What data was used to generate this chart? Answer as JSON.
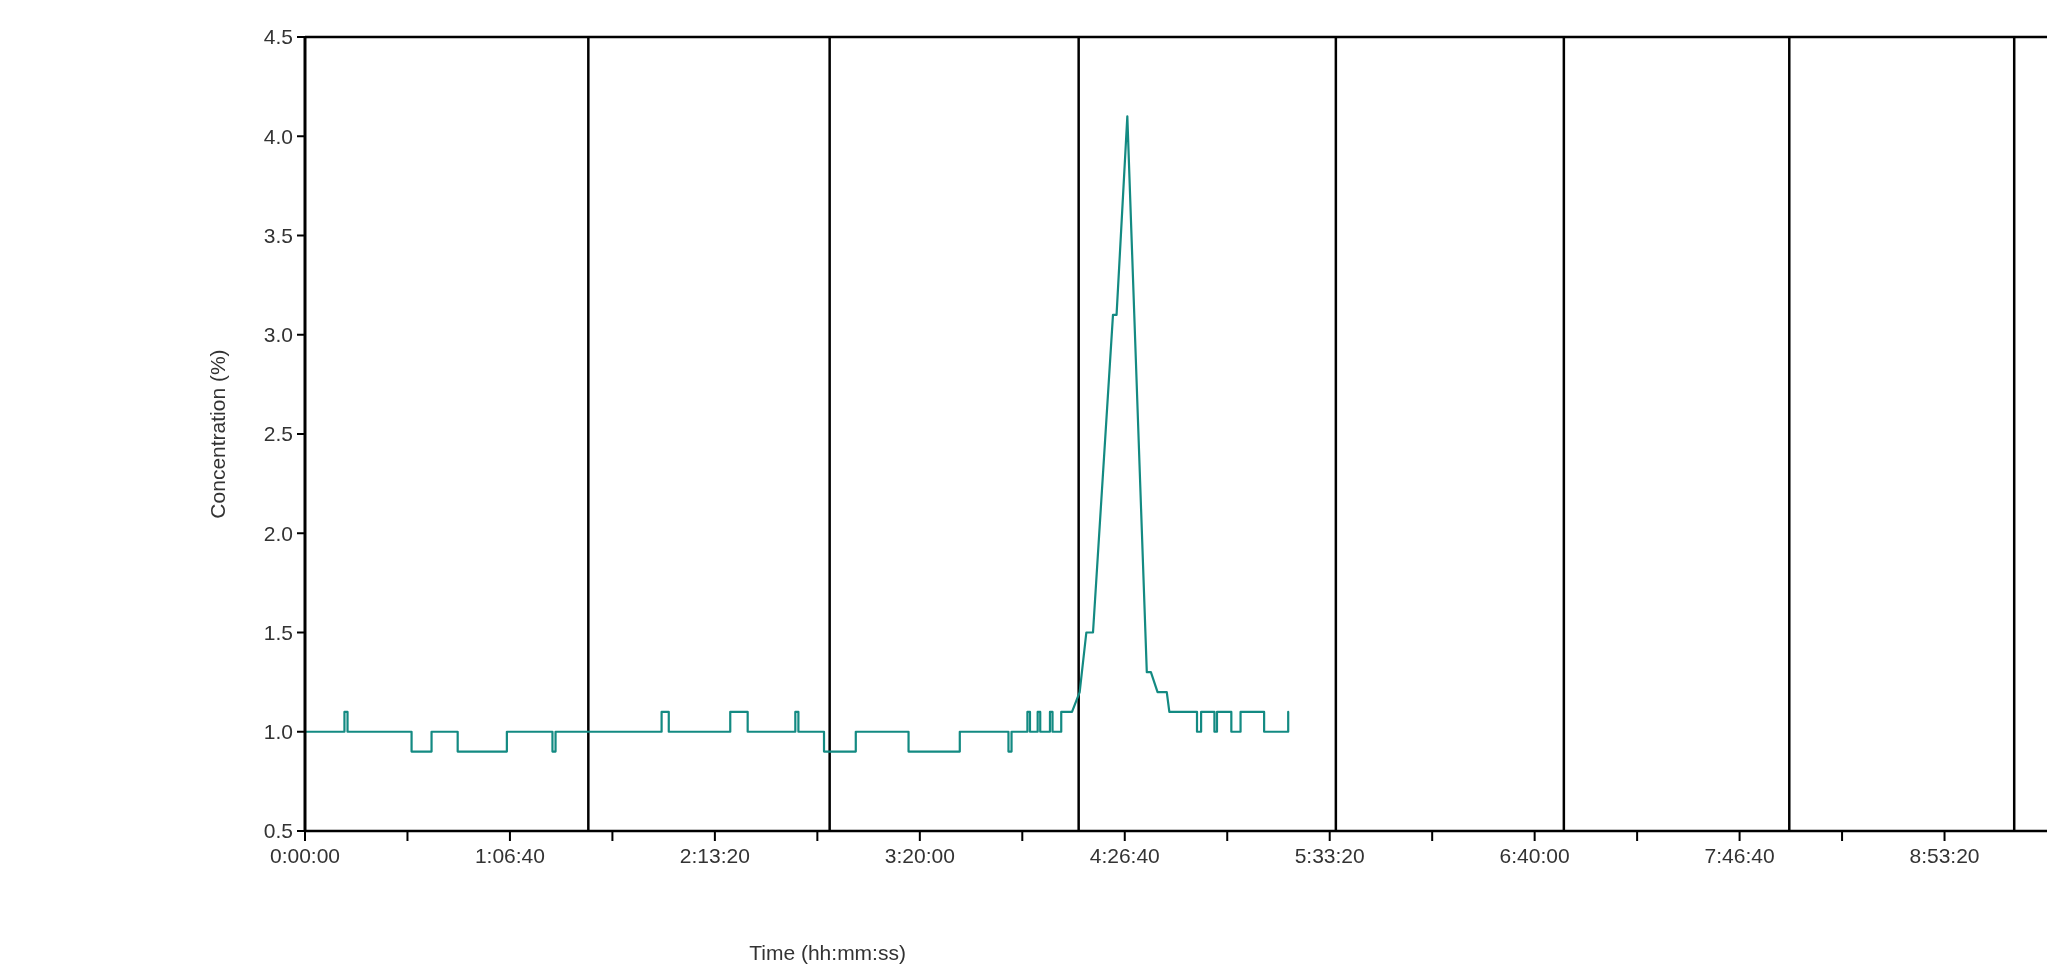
{
  "chart_data": {
    "type": "line",
    "xlabel": "Time (hh:mm:ss)",
    "ylabel": "Concentration (%)",
    "xlim": [
      0,
      34000
    ],
    "ylim": [
      0.5,
      4.5
    ],
    "xticks": [
      {
        "value": 0,
        "label": "0:00:00"
      },
      {
        "value": 2000,
        "label": null
      },
      {
        "value": 4000,
        "label": "1:06:40"
      },
      {
        "value": 6000,
        "label": null
      },
      {
        "value": 8000,
        "label": "2:13:20"
      },
      {
        "value": 10000,
        "label": null
      },
      {
        "value": 12000,
        "label": "3:20:00"
      },
      {
        "value": 14000,
        "label": null
      },
      {
        "value": 16000,
        "label": "4:26:40"
      },
      {
        "value": 18000,
        "label": null
      },
      {
        "value": 20000,
        "label": "5:33:20"
      },
      {
        "value": 22000,
        "label": null
      },
      {
        "value": 24000,
        "label": "6:40:00"
      },
      {
        "value": 26000,
        "label": null
      },
      {
        "value": 28000,
        "label": "7:46:40"
      },
      {
        "value": 30000,
        "label": null
      },
      {
        "value": 32000,
        "label": "8:53:20"
      }
    ],
    "yticks": [
      {
        "value": 0.5,
        "label": "0.5"
      },
      {
        "value": 1,
        "label": "1.0"
      },
      {
        "value": 1.5,
        "label": "1.5"
      },
      {
        "value": 2,
        "label": "2.0"
      },
      {
        "value": 2.5,
        "label": "2.5"
      },
      {
        "value": 3,
        "label": "3.0"
      },
      {
        "value": 3.5,
        "label": "3.5"
      },
      {
        "value": 4,
        "label": "4.0"
      },
      {
        "value": 4.5,
        "label": "4.5"
      }
    ],
    "grid": false,
    "marker": "none",
    "line_style": "solid",
    "ref_lines": [
      {
        "axis": "x",
        "value": 5530,
        "color": "#000000"
      },
      {
        "axis": "x",
        "value": 10240,
        "color": "#000000"
      },
      {
        "axis": "x",
        "value": 15100,
        "color": "#000000"
      },
      {
        "axis": "x",
        "value": 20120,
        "color": "#000000"
      },
      {
        "axis": "x",
        "value": 24570,
        "color": "#000000"
      },
      {
        "axis": "x",
        "value": 28970,
        "color": "#000000"
      },
      {
        "axis": "x",
        "value": 33360,
        "color": "#000000"
      }
    ],
    "series": [
      {
        "color": "#138a82",
        "x": [
          0,
          770,
          770,
          830,
          830,
          2080,
          2080,
          2470,
          2470,
          2980,
          2980,
          3940,
          3940,
          4830,
          4830,
          4890,
          4890,
          6960,
          6960,
          7100,
          7100,
          8300,
          8300,
          8640,
          8640,
          9570,
          9570,
          9630,
          9630,
          10130,
          10130,
          10750,
          10750,
          11780,
          11780,
          12780,
          12780,
          13730,
          13730,
          13790,
          13790,
          14100,
          14100,
          14150,
          14150,
          14300,
          14300,
          14350,
          14350,
          14540,
          14540,
          14590,
          14590,
          14760,
          14760,
          14970,
          15120,
          15250,
          15380,
          15770,
          15840,
          16050,
          16430,
          16510,
          16640,
          16820,
          16870,
          17410,
          17410,
          17490,
          17490,
          17750,
          17750,
          17800,
          17800,
          18080,
          18080,
          18260,
          18260,
          18720,
          18720,
          19190,
          19190
        ],
        "values": [
          1,
          1,
          1.1,
          1.1,
          1,
          1,
          0.9,
          0.9,
          1,
          1,
          0.9,
          0.9,
          1,
          1,
          0.9,
          0.9,
          1,
          1,
          1.1,
          1.1,
          1,
          1,
          1.1,
          1.1,
          1,
          1,
          1.1,
          1.1,
          1,
          1,
          0.9,
          0.9,
          1,
          1,
          0.9,
          0.9,
          1,
          1,
          0.9,
          0.9,
          1,
          1,
          1.1,
          1.1,
          1,
          1,
          1.1,
          1.1,
          1,
          1,
          1.1,
          1.1,
          1,
          1,
          1.1,
          1.1,
          1.2,
          1.5,
          1.5,
          3.1,
          3.1,
          4.1,
          1.3,
          1.3,
          1.2,
          1.2,
          1.1,
          1.1,
          1,
          1,
          1.1,
          1.1,
          1,
          1,
          1.1,
          1.1,
          1,
          1,
          1.1,
          1.1,
          1,
          1,
          1.1
        ]
      }
    ]
  }
}
